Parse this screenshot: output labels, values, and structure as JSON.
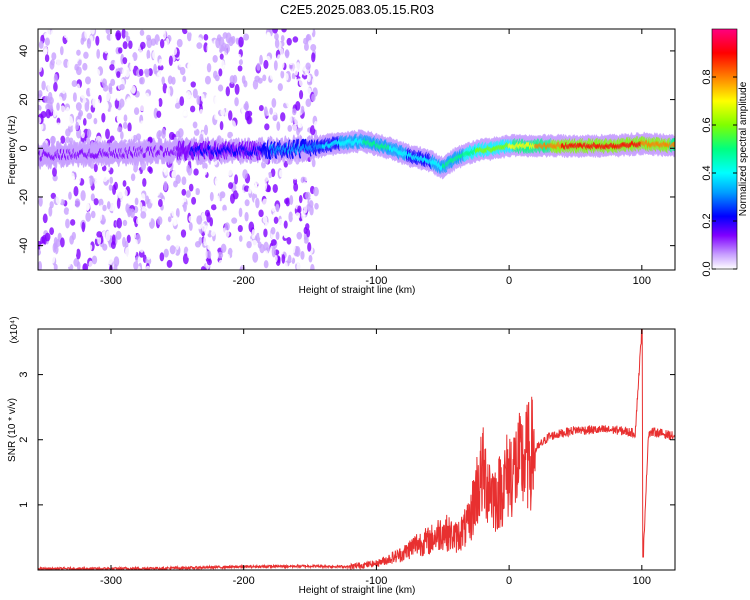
{
  "title": "C2E5.2025.083.05.15.R03",
  "chart_data": [
    {
      "type": "heatmap",
      "xlabel": "Height of straight line (km)",
      "ylabel": "Frequency (Hz)",
      "xlim": [
        -355,
        125
      ],
      "ylim": [
        -50,
        49
      ],
      "x_ticks": [
        -300,
        -200,
        -100,
        0,
        100
      ],
      "y_ticks": [
        -40,
        -20,
        0,
        20,
        40
      ],
      "colorbar": {
        "label": "Normalized spectral amplitude",
        "range": [
          0,
          1
        ],
        "ticks": [
          "0.0",
          "0.2",
          "0.4",
          "0.6",
          "0.8"
        ],
        "colors": [
          "#ffffff",
          "#c8a0ff",
          "#8000ff",
          "#0000ff",
          "#00a0ff",
          "#00ffff",
          "#00ff80",
          "#80ff00",
          "#ffff00",
          "#ff8000",
          "#ff0000",
          "#ff0080"
        ]
      },
      "ridge": [
        {
          "x": -355,
          "f": -3,
          "amp": 0.15
        },
        {
          "x": -300,
          "f": -2,
          "amp": 0.18
        },
        {
          "x": -250,
          "f": -1,
          "amp": 0.2
        },
        {
          "x": -200,
          "f": -1,
          "amp": 0.3
        },
        {
          "x": -150,
          "f": 0,
          "amp": 0.35
        },
        {
          "x": -130,
          "f": 2,
          "amp": 0.45
        },
        {
          "x": -110,
          "f": 3,
          "amp": 0.5
        },
        {
          "x": -90,
          "f": 0,
          "amp": 0.5
        },
        {
          "x": -75,
          "f": -3,
          "amp": 0.45
        },
        {
          "x": -60,
          "f": -5,
          "amp": 0.45
        },
        {
          "x": -50,
          "f": -8,
          "amp": 0.5
        },
        {
          "x": -40,
          "f": -4,
          "amp": 0.55
        },
        {
          "x": -25,
          "f": -1,
          "amp": 0.6
        },
        {
          "x": -10,
          "f": 0,
          "amp": 0.65
        },
        {
          "x": 0,
          "f": 1,
          "amp": 0.7
        },
        {
          "x": 20,
          "f": 1,
          "amp": 0.8
        },
        {
          "x": 40,
          "f": 1,
          "amp": 0.9
        },
        {
          "x": 60,
          "f": 1,
          "amp": 0.95
        },
        {
          "x": 80,
          "f": 1,
          "amp": 0.95
        },
        {
          "x": 100,
          "f": 2,
          "amp": 0.9
        },
        {
          "x": 125,
          "f": 1,
          "amp": 0.85
        }
      ],
      "noise_region": {
        "x_range": [
          -355,
          -145
        ],
        "density": "high"
      }
    },
    {
      "type": "line",
      "xlabel": "Height of straight line (km)",
      "ylabel": "SNR (10 * v/v)",
      "y_multiplier": "(x10⁴)",
      "xlim": [
        -355,
        125
      ],
      "ylim": [
        0,
        3.7
      ],
      "x_ticks": [
        -300,
        -200,
        -100,
        0,
        100
      ],
      "y_ticks": [
        1,
        2,
        3
      ],
      "color": "#e83030",
      "x": [
        -355,
        -300,
        -250,
        -200,
        -150,
        -120,
        -100,
        -80,
        -70,
        -60,
        -50,
        -40,
        -30,
        -25,
        -20,
        -10,
        0,
        10,
        20,
        30,
        40,
        50,
        60,
        70,
        80,
        90,
        95,
        100,
        101,
        105,
        110,
        125
      ],
      "y": [
        0.02,
        0.02,
        0.03,
        0.05,
        0.06,
        0.05,
        0.1,
        0.25,
        0.4,
        0.45,
        0.6,
        0.5,
        0.7,
        1.2,
        1.5,
        1.1,
        1.5,
        1.65,
        1.85,
        2.05,
        2.1,
        2.15,
        2.15,
        2.15,
        2.15,
        2.12,
        2.1,
        3.7,
        0.2,
        2.1,
        2.12,
        2.05
      ]
    }
  ]
}
